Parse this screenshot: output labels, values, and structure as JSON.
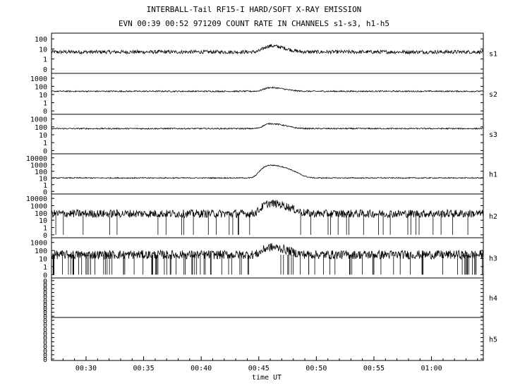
{
  "title": "INTERBALL-Tail RF15-I HARD/SOFT X-RAY EMISSION",
  "subtitle": "EVN 00:39 00:52 971209  COUNT RATE IN CHANNELS s1-s3, h1-h5",
  "chart_data": {
    "type": "line",
    "title": "INTERBALL-Tail RF15-I HARD/SOFT X-RAY EMISSION",
    "subtitle": "EVN 00:39 00:52 971209  COUNT RATE IN CHANNELS s1-s3, h1-h5",
    "xlabel": "time UT",
    "x_ticks": [
      "00:30",
      "00:35",
      "00:40",
      "00:45",
      "00:50",
      "00:55",
      "01:00"
    ],
    "x_range_minutes": [
      27,
      64.5
    ],
    "y_scale": "log",
    "grid": false,
    "panels": [
      {
        "name": "s1",
        "y_tick_labels": [
          "100",
          "10",
          "1",
          "0"
        ],
        "baseline": 5,
        "peak_time_min": 46.0,
        "peak_value": 20
      },
      {
        "name": "s2",
        "y_tick_labels": [
          "1000",
          "100",
          "10",
          "1",
          "0"
        ],
        "baseline": 25,
        "peak_time_min": 46.0,
        "peak_value": 70
      },
      {
        "name": "s3",
        "y_tick_labels": [
          "1000",
          "100",
          "10",
          "1",
          "0"
        ],
        "baseline": 60,
        "peak_time_min": 46.0,
        "peak_value": 250
      },
      {
        "name": "h1",
        "y_tick_labels": [
          "10000",
          "1000",
          "100",
          "10",
          "1",
          "0"
        ],
        "baseline": 10,
        "peak_time_min": 46.0,
        "peak_value": 800
      },
      {
        "name": "h2",
        "y_tick_labels": [
          "10000",
          "1000",
          "100",
          "10",
          "1",
          "0"
        ],
        "baseline": 80,
        "peak_time_min": 46.0,
        "peak_value": 2000
      },
      {
        "name": "h3",
        "y_tick_labels": [
          "1000",
          "100",
          "10",
          "1",
          "0"
        ],
        "baseline": 30,
        "peak_time_min": 46.0,
        "peak_value": 250
      },
      {
        "name": "h4",
        "y_tick_labels": [
          "0",
          "0",
          "0",
          "0",
          "0",
          "0",
          "0",
          "0",
          "0",
          "0"
        ],
        "baseline": 0,
        "peak_time_min": null,
        "peak_value": 0
      },
      {
        "name": "h5",
        "y_tick_labels": [
          "0",
          "0",
          "0",
          "0",
          "0",
          "0",
          "0",
          "0",
          "0",
          "0"
        ],
        "baseline": 0,
        "peak_time_min": null,
        "peak_value": 0
      }
    ]
  }
}
